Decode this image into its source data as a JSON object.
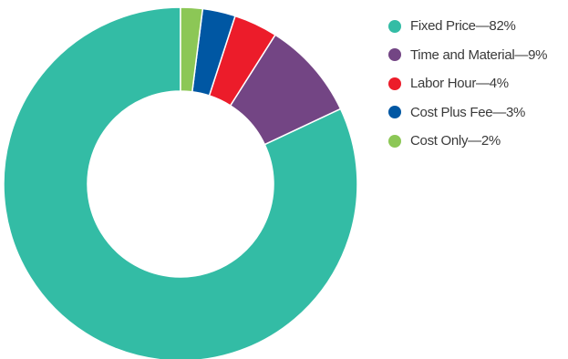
{
  "chart_data": {
    "type": "pie",
    "donut": true,
    "title": "",
    "legend_position": "right",
    "series": [
      {
        "name": "Fixed Price",
        "value": 82,
        "label": "Fixed Price—82%",
        "color": "#33BCA5"
      },
      {
        "name": "Time and Material",
        "value": 9,
        "label": "Time and Material—9%",
        "color": "#734584"
      },
      {
        "name": "Labor Hour",
        "value": 4,
        "label": "Labor Hour—4%",
        "color": "#EC1C2A"
      },
      {
        "name": "Cost Plus Fee",
        "value": 3,
        "label": "Cost Plus Fee—3%",
        "color": "#0057A3"
      },
      {
        "name": "Cost Only",
        "value": 2,
        "label": "Cost Only—2%",
        "color": "#8CC756"
      }
    ]
  }
}
